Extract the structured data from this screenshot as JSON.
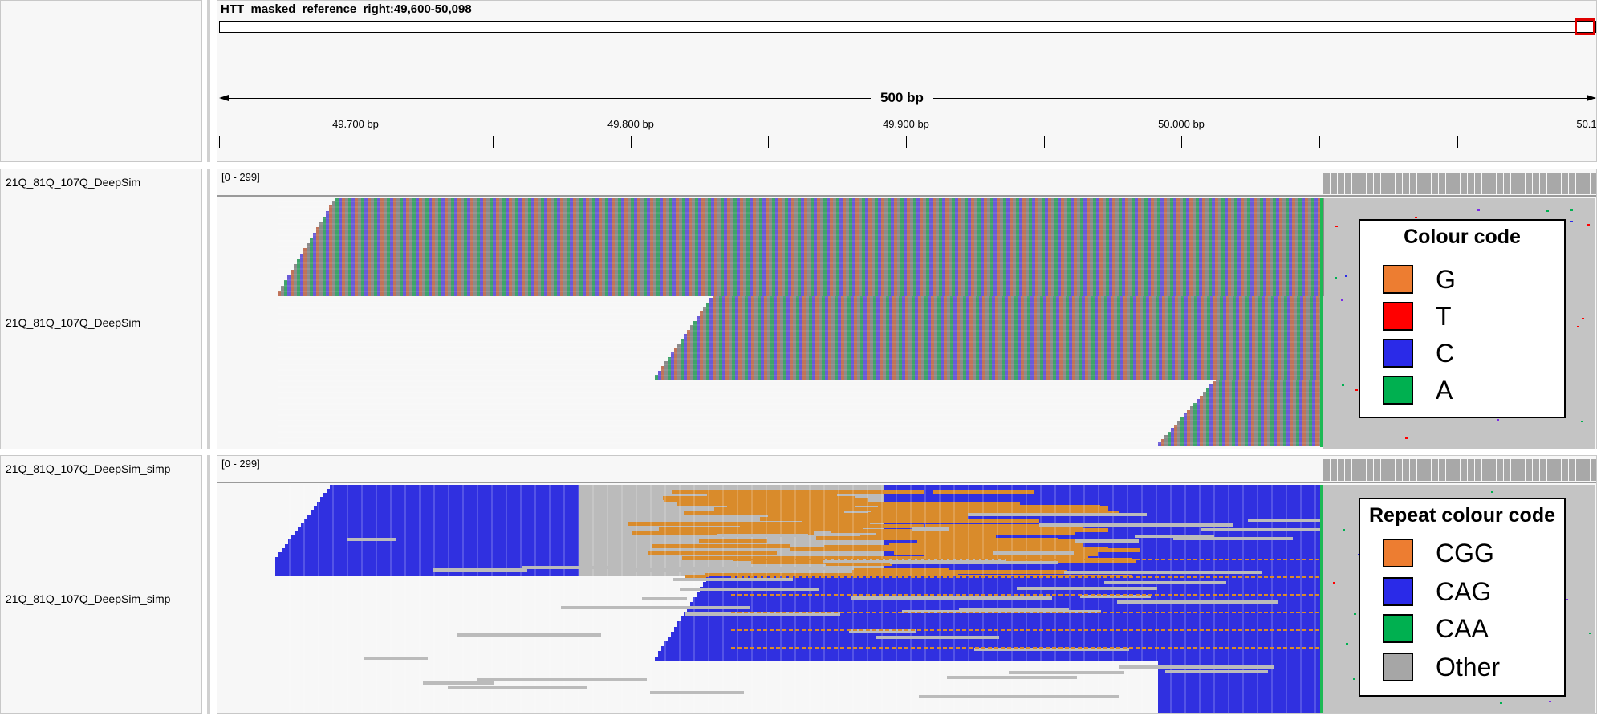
{
  "ruler": {
    "locus": "HTT_masked_reference_right:49,600-50,098",
    "span_label": "500 bp",
    "ticks": [
      "49.700 bp",
      "49.800 bp",
      "49.900 bp",
      "50.000 bp",
      "50.1"
    ]
  },
  "tracks": [
    {
      "name_top": "21Q_81Q_107Q_DeepSim",
      "name_bottom": "21Q_81Q_107Q_DeepSim",
      "range": "[0 - 299]"
    },
    {
      "name_top": "21Q_81Q_107Q_DeepSim_simp",
      "name_bottom": "21Q_81Q_107Q_DeepSim_simp",
      "range": "[0 - 299]"
    }
  ],
  "legend_base": {
    "title": "Colour code",
    "items": [
      {
        "label": "G",
        "color": "#ed7d31"
      },
      {
        "label": "T",
        "color": "#ff0000"
      },
      {
        "label": "C",
        "color": "#2a2ae8"
      },
      {
        "label": "A",
        "color": "#00b050"
      }
    ]
  },
  "legend_repeat": {
    "title": "Repeat colour code",
    "items": [
      {
        "label": "CGG",
        "color": "#ed7d31"
      },
      {
        "label": "CAG",
        "color": "#2a2ae8"
      },
      {
        "label": "CAA",
        "color": "#00b050"
      },
      {
        "label": "Other",
        "color": "#a6a6a6"
      }
    ]
  },
  "colors": {
    "panel_bg": "#f7f7f7",
    "soft_clip_gray": "#c4c4c4",
    "coverage_gray": "#a8a8a8",
    "cgg_orange": "#d98b2b",
    "cag_blue": "#3030e0",
    "other_gray": "#bbbbbb",
    "red_box": "#e00000"
  }
}
